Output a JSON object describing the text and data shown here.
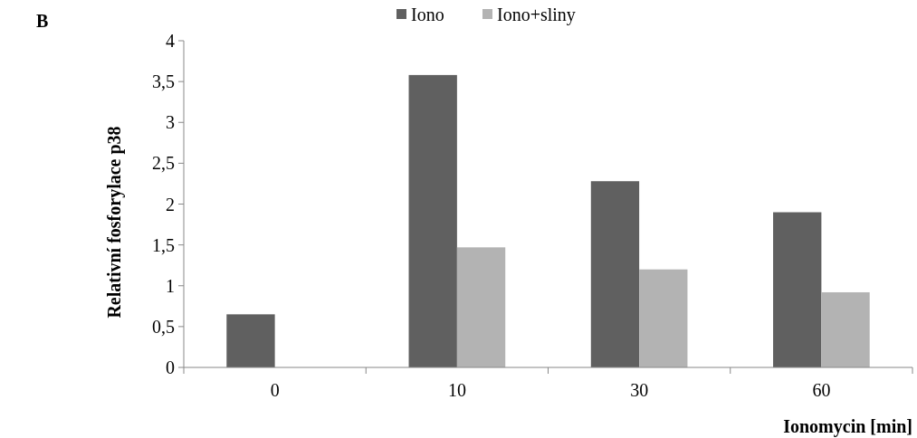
{
  "chart_data": {
    "type": "bar",
    "title": "B",
    "xlabel": "Ionomycin [min]",
    "ylabel": "Relativní fosforylace p38",
    "categories": [
      "0",
      "10",
      "30",
      "60"
    ],
    "series": [
      {
        "name": "Iono",
        "color": "#606060",
        "values": [
          0.65,
          3.58,
          2.28,
          1.9
        ]
      },
      {
        "name": "Iono+sliny",
        "color": "#b3b3b3",
        "values": [
          null,
          1.47,
          1.2,
          0.92
        ]
      }
    ],
    "ylim": [
      0,
      4
    ],
    "yticks": [
      0,
      {
        "value": 0.5,
        "label": "0,5"
      },
      1,
      {
        "value": 1.5,
        "label": "1,5"
      },
      2,
      {
        "value": 2.5,
        "label": "2,5"
      },
      3,
      {
        "value": 3.5,
        "label": "3,5"
      },
      4
    ],
    "grid": false,
    "legend": "top"
  }
}
